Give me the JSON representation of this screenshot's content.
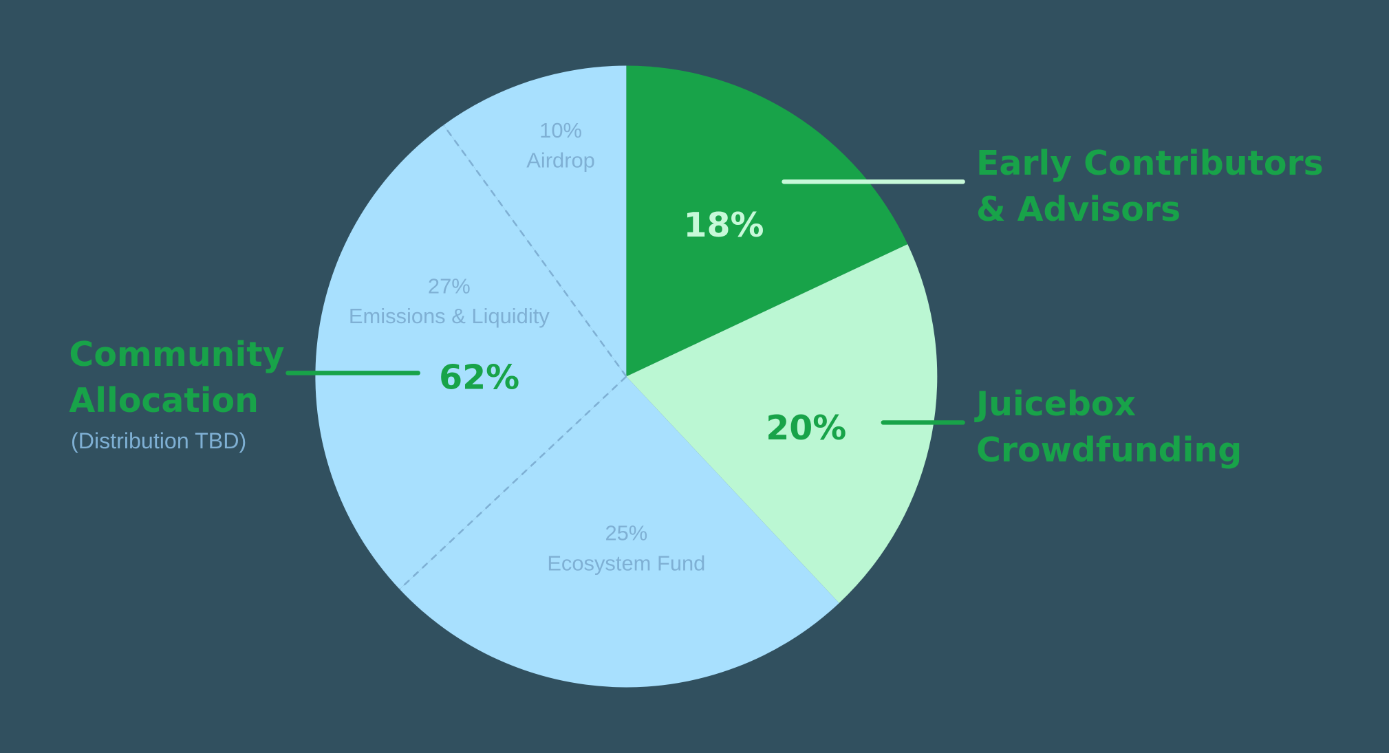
{
  "chart_data": {
    "type": "pie",
    "start_angle": "top",
    "direction": "clockwise",
    "slices": [
      {
        "label": "Early Contributors & Advisors",
        "value": 18,
        "pct_label": "18%",
        "color": "#18a349",
        "group": "Early Contributors & Advisors"
      },
      {
        "label": "Juicebox Crowdfunding",
        "value": 20,
        "pct_label": "20%",
        "color": "#bbf7d3",
        "group": "Juicebox Crowdfunding"
      },
      {
        "label": "Ecosystem Fund",
        "value": 25,
        "pct_label": "25%",
        "color": "#a8e0fe",
        "group": "Community Allocation"
      },
      {
        "label": "Emissions & Liquidity",
        "value": 27,
        "pct_label": "27%",
        "color": "#a8e0fe",
        "group": "Community Allocation"
      },
      {
        "label": "Airdrop",
        "value": 10,
        "pct_label": "10%",
        "color": "#a8e0fe",
        "group": "Community Allocation"
      }
    ],
    "callouts": {
      "early": {
        "line1": "Early Contributors",
        "line2": "& Advisors",
        "pct": "18%"
      },
      "juicebox": {
        "line1": "Juicebox",
        "line2": "Crowdfunding",
        "pct": "20%"
      },
      "community": {
        "line1": "Community",
        "line2": "Allocation",
        "note": "(Distribution TBD)",
        "pct": "62%"
      }
    },
    "colors": {
      "background": "#31505f",
      "accent": "#18a349",
      "muted_text": "#7fb0d4",
      "light_text": "#c7f9d9"
    }
  }
}
